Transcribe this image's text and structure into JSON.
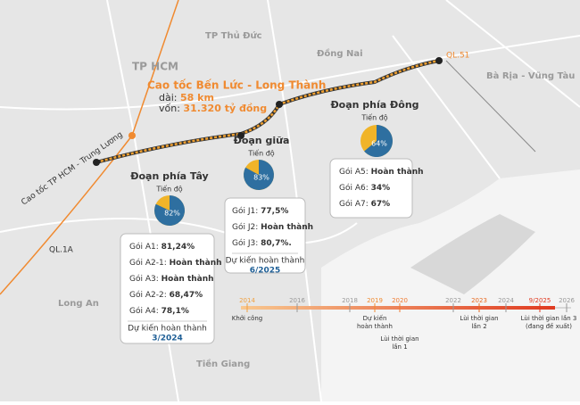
{
  "map": {
    "places": [
      "TP Thủ Đức",
      "Đồng Nai",
      "TP HCM",
      "Bà Rịa - Vũng Tàu",
      "Long An",
      "Tiền Giang"
    ],
    "roads": [
      "Cao tốc TP HCM - Trung Lương",
      "QL.1A",
      "QL.51"
    ],
    "headline": {
      "title": "Cao tốc Bến Lức - Long Thành",
      "length_label": "dài:",
      "length": "58 km",
      "capital_label": "vốn:",
      "capital": "31.320 tỷ đồng"
    },
    "sections": [
      {
        "name": "Đoạn phía Tây",
        "progress_title": "Tiến độ",
        "progress": 82,
        "progress_label": "82%",
        "packages": [
          [
            "Gói A1:",
            "81,24%"
          ],
          [
            "Gói A2-1:",
            "Hoàn thành"
          ],
          [
            "Gói A3:",
            "Hoàn thành"
          ],
          [
            "Gói A2-2:",
            "68,47%"
          ],
          [
            "Gói A4:",
            "78,1%"
          ]
        ],
        "finish_label": "Dự kiến hoàn thành",
        "finish": "3/2024"
      },
      {
        "name": "Đoạn giữa",
        "progress_title": "Tiến độ",
        "progress": 83,
        "progress_label": "83%",
        "packages": [
          [
            "Gói J1:",
            "77,5%"
          ],
          [
            "Gói J2:",
            "Hoàn thành"
          ],
          [
            "Gói J3:",
            "80,7%."
          ]
        ],
        "finish_label": "Dự kiến hoàn thành",
        "finish": "6/2025"
      },
      {
        "name": "Đoạn phía Đông",
        "progress_title": "Tiến độ",
        "progress": 64,
        "progress_label": "64%",
        "packages": [
          [
            "Gói A5:",
            "Hoàn thành"
          ],
          [
            "Gói A6:",
            "34%"
          ],
          [
            "Gói A7:",
            "67%"
          ]
        ]
      }
    ],
    "timeline": [
      {
        "year": "2014",
        "color": "#f0a040",
        "event": [
          "Khởi công"
        ]
      },
      {
        "year": "2016",
        "color": "#999999"
      },
      {
        "year": "2018",
        "color": "#999999"
      },
      {
        "year": "2019",
        "color": "#f08a30",
        "event": [
          "Dự kiến",
          "hoàn thành"
        ]
      },
      {
        "year": "2020",
        "color": "#f07a30",
        "event": [
          "Lùi thời gian",
          "lần 1"
        ]
      },
      {
        "year": "2022",
        "color": "#999999"
      },
      {
        "year": "2023",
        "color": "#e86a20",
        "event": [
          "Lùi thời gian",
          "lần 2"
        ]
      },
      {
        "year": "2024",
        "color": "#999999"
      },
      {
        "year": "9/2025",
        "color": "#e03a20",
        "event": [
          "Lùi thời gian lần 3",
          "(đang đề xuất)"
        ]
      },
      {
        "year": "2026",
        "color": "#999999"
      }
    ]
  }
}
